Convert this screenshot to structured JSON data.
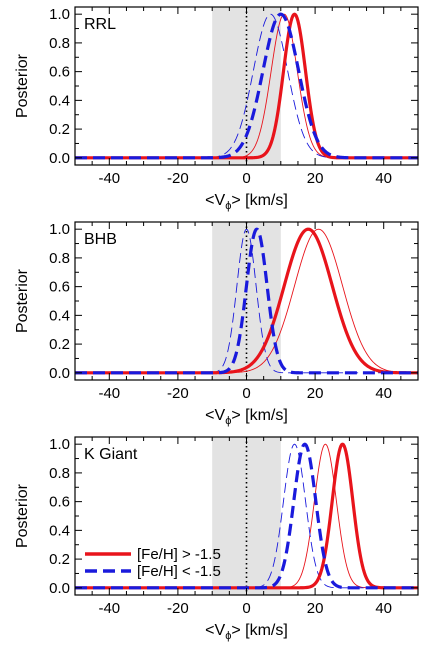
{
  "chart_data": [
    {
      "type": "line",
      "panel_label": "RRL",
      "xlabel": "<V",
      "xlabel_sub": "ϕ",
      "xlabel_rest": "> [km/s]",
      "ylabel": "Posterior",
      "xlim": [
        -50,
        50
      ],
      "ylim": [
        -0.05,
        1.05
      ],
      "xticks": [
        -40,
        -20,
        0,
        20,
        40
      ],
      "yticks": [
        0.0,
        0.2,
        0.4,
        0.6,
        0.8,
        1.0
      ],
      "xtick_labels": [
        "-40",
        "-20",
        "0",
        "20",
        "40"
      ],
      "ytick_labels": [
        "0.0",
        "0.2",
        "0.4",
        "0.6",
        "0.8",
        "1.0"
      ],
      "shaded_band": [
        -10,
        10
      ],
      "vline": 0,
      "series": [
        {
          "mu": 14,
          "sigma": 3.2,
          "color": "#e8141b",
          "style": "solid",
          "weight": "thick"
        },
        {
          "mu": 11,
          "sigma": 3.8,
          "color": "#e8141b",
          "style": "solid",
          "weight": "thin"
        },
        {
          "mu": 10,
          "sigma": 5.2,
          "color": "#1a1adc",
          "style": "dashed",
          "weight": "thick"
        },
        {
          "mu": 7,
          "sigma": 5.0,
          "color": "#1a1adc",
          "style": "dashed",
          "weight": "thin"
        }
      ]
    },
    {
      "type": "line",
      "panel_label": "BHB",
      "xlabel": "<V",
      "xlabel_sub": "ϕ",
      "xlabel_rest": "> [km/s]",
      "ylabel": "Posterior",
      "xlim": [
        -50,
        50
      ],
      "ylim": [
        -0.05,
        1.05
      ],
      "xticks": [
        -40,
        -20,
        0,
        20,
        40
      ],
      "yticks": [
        0.0,
        0.2,
        0.4,
        0.6,
        0.8,
        1.0
      ],
      "xtick_labels": [
        "-40",
        "-20",
        "0",
        "20",
        "40"
      ],
      "ytick_labels": [
        "0.0",
        "0.2",
        "0.4",
        "0.6",
        "0.8",
        "1.0"
      ],
      "shaded_band": [
        -10,
        10
      ],
      "vline": 0,
      "series": [
        {
          "mu": 18,
          "sigma": 7.0,
          "color": "#e8141b",
          "style": "solid",
          "weight": "thick"
        },
        {
          "mu": 21,
          "sigma": 7.0,
          "color": "#e8141b",
          "style": "solid",
          "weight": "thin"
        },
        {
          "mu": 3,
          "sigma": 3.0,
          "color": "#1a1adc",
          "style": "dashed",
          "weight": "thick"
        },
        {
          "mu": 0,
          "sigma": 2.8,
          "color": "#1a1adc",
          "style": "dashed",
          "weight": "thin"
        }
      ]
    },
    {
      "type": "line",
      "panel_label": "K Giant",
      "xlabel": "<V",
      "xlabel_sub": "ϕ",
      "xlabel_rest": "> [km/s]",
      "ylabel": "Posterior",
      "xlim": [
        -50,
        50
      ],
      "ylim": [
        -0.05,
        1.05
      ],
      "xticks": [
        -40,
        -20,
        0,
        20,
        40
      ],
      "yticks": [
        0.0,
        0.2,
        0.4,
        0.6,
        0.8,
        1.0
      ],
      "xtick_labels": [
        "-40",
        "-20",
        "0",
        "20",
        "40"
      ],
      "ytick_labels": [
        "0.0",
        "0.2",
        "0.4",
        "0.6",
        "0.8",
        "1.0"
      ],
      "shaded_band": [
        -10,
        10
      ],
      "vline": 0,
      "series": [
        {
          "mu": 28,
          "sigma": 3.0,
          "color": "#e8141b",
          "style": "solid",
          "weight": "thick"
        },
        {
          "mu": 23,
          "sigma": 3.2,
          "color": "#e8141b",
          "style": "solid",
          "weight": "thin"
        },
        {
          "mu": 17,
          "sigma": 3.2,
          "color": "#1a1adc",
          "style": "dashed",
          "weight": "thick"
        },
        {
          "mu": 14,
          "sigma": 3.2,
          "color": "#1a1adc",
          "style": "dashed",
          "weight": "thin"
        }
      ],
      "legend": [
        {
          "label": "[Fe/H] > -1.5",
          "color": "#e8141b",
          "style": "solid"
        },
        {
          "label": "[Fe/H] < -1.5",
          "color": "#1a1adc",
          "style": "dashed"
        }
      ],
      "legend_position": "lower-left"
    }
  ]
}
